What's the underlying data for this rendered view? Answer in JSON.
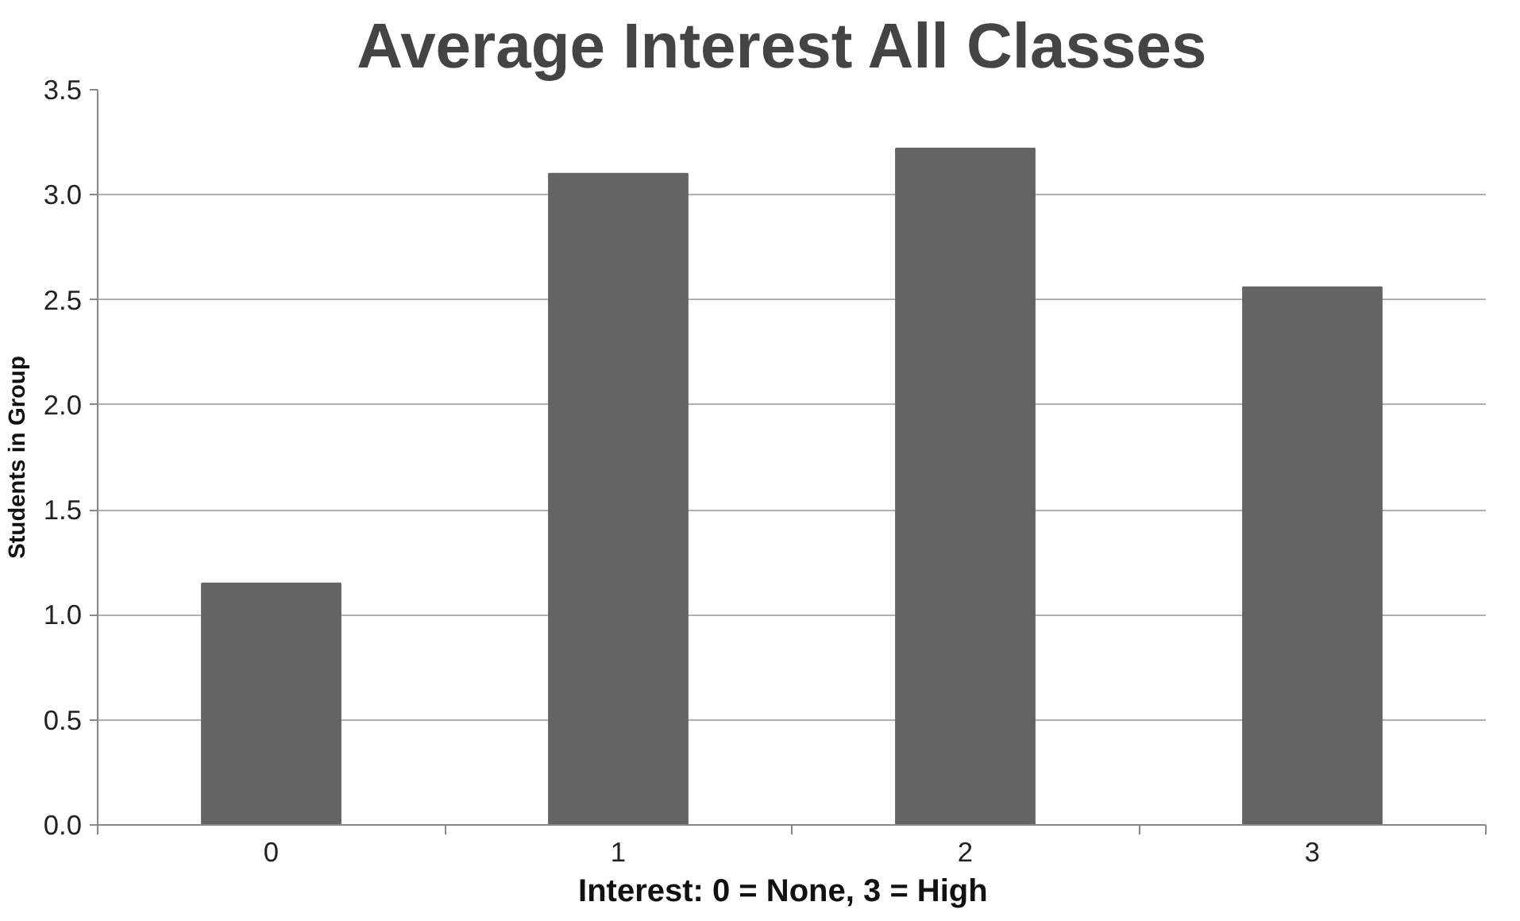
{
  "chart_data": {
    "type": "bar",
    "title": "Average Interest  All Classes",
    "xlabel": "Interest:  0 = None,  3 = High",
    "ylabel": "Students in Group",
    "categories": [
      "0",
      "1",
      "2",
      "3"
    ],
    "values": [
      1.15,
      3.1,
      3.22,
      2.56
    ],
    "color": "#646464",
    "ylim": [
      0,
      3.5
    ],
    "yticks": [
      {
        "value": 0,
        "label": "0.0"
      },
      {
        "value": 0.5,
        "label": "0.5"
      },
      {
        "value": 1,
        "label": "1.0"
      },
      {
        "value": 1.5,
        "label": "1.5"
      },
      {
        "value": 2,
        "label": "2.0"
      },
      {
        "value": 2.5,
        "label": "2.5"
      },
      {
        "value": 3,
        "label": "3.0"
      },
      {
        "value": 3.5,
        "label": "3.5"
      }
    ],
    "grid": "y"
  }
}
